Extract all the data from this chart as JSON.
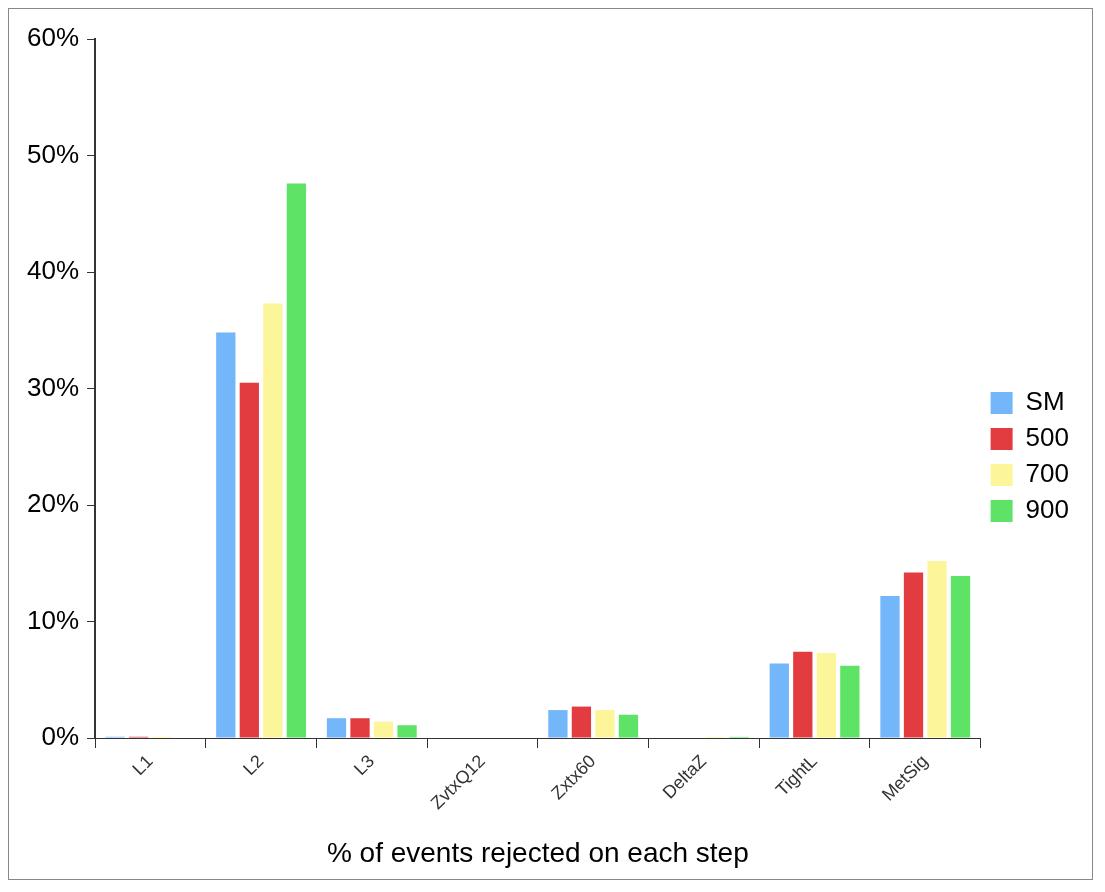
{
  "chart_data": {
    "type": "bar",
    "xlabel": "% of events rejected on each step",
    "categories": [
      "L1",
      "L2",
      "L3",
      "ZvtxQ12",
      "Zxtx60",
      "DeltaZ",
      "TightL",
      "MetSig"
    ],
    "series": [
      {
        "name": "SM",
        "color": "#74b6fa",
        "values": [
          0.1,
          34.8,
          1.7,
          0,
          2.4,
          0,
          6.4,
          12.2
        ]
      },
      {
        "name": "500",
        "color": "#e23c40",
        "values": [
          0.1,
          30.5,
          1.7,
          0,
          2.7,
          0,
          7.4,
          14.2
        ]
      },
      {
        "name": "700",
        "color": "#fdf59a",
        "values": [
          0.1,
          37.3,
          1.4,
          0,
          2.4,
          0.1,
          7.3,
          15.2
        ]
      },
      {
        "name": "900",
        "color": "#5fe366",
        "values": [
          0,
          47.6,
          1.1,
          0,
          2.0,
          0.1,
          6.2,
          13.9
        ]
      }
    ],
    "ylim": [
      0,
      60
    ],
    "yticks": [
      {
        "value": 0,
        "label": "0%"
      },
      {
        "value": 10,
        "label": "10%"
      },
      {
        "value": 20,
        "label": "20%"
      },
      {
        "value": 30,
        "label": "30%"
      },
      {
        "value": 40,
        "label": "40%"
      },
      {
        "value": 50,
        "label": "50%"
      },
      {
        "value": 60,
        "label": "60%"
      }
    ],
    "grid": false,
    "legend": "right"
  }
}
